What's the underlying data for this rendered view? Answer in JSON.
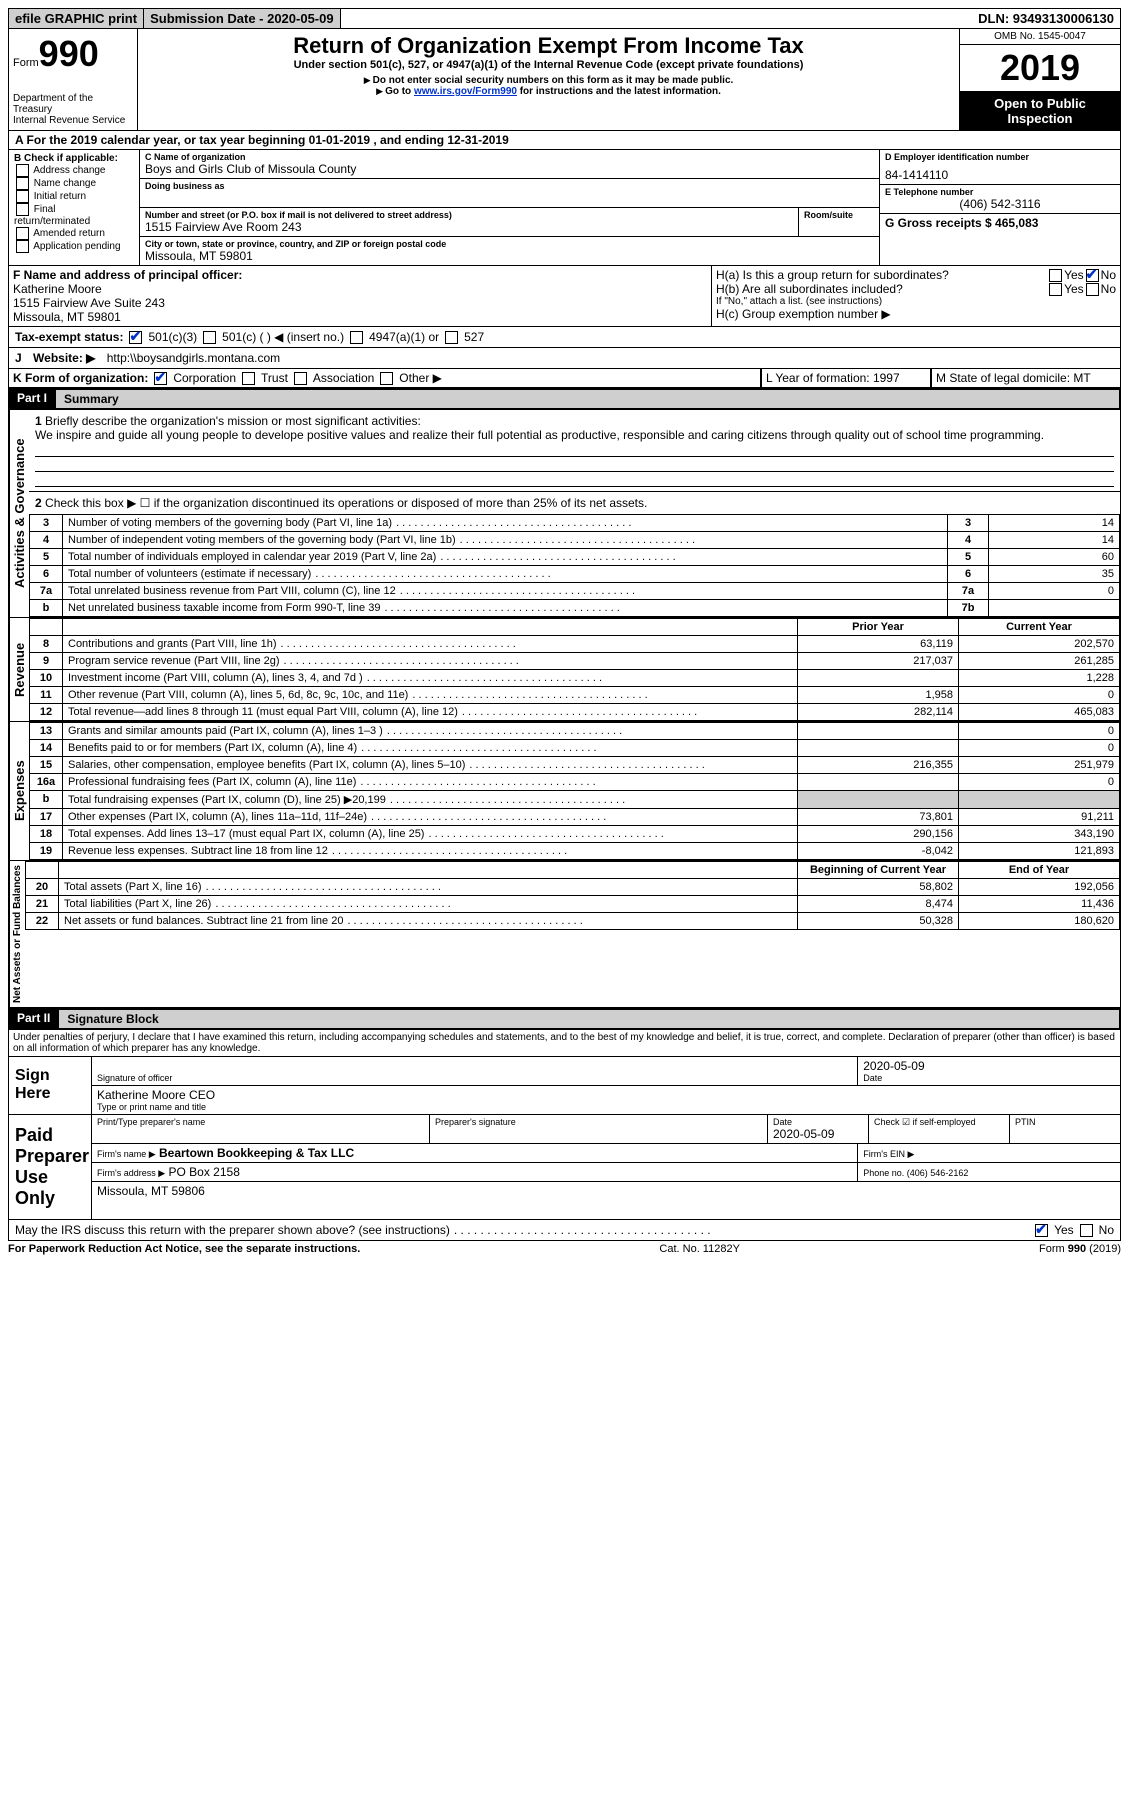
{
  "topbar": {
    "efile": "efile GRAPHIC print",
    "submission_label": "Submission Date - 2020-05-09",
    "dln": "DLN: 93493130006130"
  },
  "header": {
    "form_word": "Form",
    "form_num": "990",
    "dept": "Department of the Treasury\nInternal Revenue Service",
    "title": "Return of Organization Exempt From Income Tax",
    "subtitle": "Under section 501(c), 527, or 4947(a)(1) of the Internal Revenue Code (except private foundations)",
    "note1": "Do not enter social security numbers on this form as it may be made public.",
    "note2_pre": "Go to ",
    "note2_link": "www.irs.gov/Form990",
    "note2_post": " for instructions and the latest information.",
    "omb": "OMB No. 1545-0047",
    "year": "2019",
    "inspect": "Open to Public Inspection"
  },
  "lineA": "A For the 2019 calendar year, or tax year beginning 01-01-2019     , and ending 12-31-2019",
  "boxB": {
    "label": "B Check if applicable:",
    "items": [
      "Address change",
      "Name change",
      "Initial return",
      "Final return/terminated",
      "Amended return",
      "Application pending"
    ]
  },
  "boxC": {
    "name_label": "C Name of organization",
    "name": "Boys and Girls Club of Missoula County",
    "dba_label": "Doing business as",
    "addr_label": "Number and street (or P.O. box if mail is not delivered to street address)",
    "room_label": "Room/suite",
    "addr": "1515 Fairview Ave Room 243",
    "city_label": "City or town, state or province, country, and ZIP or foreign postal code",
    "city": "Missoula, MT  59801"
  },
  "boxD": {
    "label": "D Employer identification number",
    "val": "84-1414110"
  },
  "boxE": {
    "label": "E Telephone number",
    "val": "(406) 542-3116"
  },
  "boxG": {
    "label": "G Gross receipts $ 465,083"
  },
  "boxF": {
    "label": "F  Name and address of principal officer:",
    "name": "Katherine Moore",
    "addr1": "1515 Fairview Ave Suite 243",
    "addr2": "Missoula, MT  59801"
  },
  "boxH": {
    "a": "H(a)  Is this a group return for subordinates?",
    "b": "H(b)  Are all subordinates included?",
    "b_note": "If \"No,\" attach a list. (see instructions)",
    "c": "H(c)  Group exemption number ▶",
    "yes": "Yes",
    "no": "No"
  },
  "lineI": {
    "label": "Tax-exempt status:",
    "opts": [
      "501(c)(3)",
      "501(c) (  ) ◀ (insert no.)",
      "4947(a)(1) or",
      "527"
    ]
  },
  "lineJ": {
    "label": "Website: ▶",
    "val": "http:\\\\boysandgirls.montana.com"
  },
  "lineK": {
    "label": "K Form of organization:",
    "opts": [
      "Corporation",
      "Trust",
      "Association",
      "Other ▶"
    ]
  },
  "lineL": {
    "label": "L Year of formation: 1997"
  },
  "lineM": {
    "label": "M State of legal domicile: MT"
  },
  "part1": {
    "part": "Part I",
    "title": "Summary",
    "q1": "Briefly describe the organization's mission or most significant activities:",
    "q1_text": "We inspire and guide all young people to develope positive values and realize their full potential as productive, responsible and caring citizens through quality out of school time programming.",
    "q2": "Check this box ▶ ☐ if the organization discontinued its operations or disposed of more than 25% of its net assets.",
    "rows_top": [
      {
        "n": "3",
        "t": "Number of voting members of the governing body (Part VI, line 1a)",
        "box": "3",
        "v": "14"
      },
      {
        "n": "4",
        "t": "Number of independent voting members of the governing body (Part VI, line 1b)",
        "box": "4",
        "v": "14"
      },
      {
        "n": "5",
        "t": "Total number of individuals employed in calendar year 2019 (Part V, line 2a)",
        "box": "5",
        "v": "60"
      },
      {
        "n": "6",
        "t": "Total number of volunteers (estimate if necessary)",
        "box": "6",
        "v": "35"
      },
      {
        "n": "7a",
        "t": "Total unrelated business revenue from Part VIII, column (C), line 12",
        "box": "7a",
        "v": "0"
      },
      {
        "n": "b",
        "t": "Net unrelated business taxable income from Form 990-T, line 39",
        "box": "7b",
        "v": ""
      }
    ],
    "col_prior": "Prior Year",
    "col_current": "Current Year",
    "revenue_label": "Revenue",
    "revenue": [
      {
        "n": "8",
        "t": "Contributions and grants (Part VIII, line 1h)",
        "p": "63,119",
        "c": "202,570"
      },
      {
        "n": "9",
        "t": "Program service revenue (Part VIII, line 2g)",
        "p": "217,037",
        "c": "261,285"
      },
      {
        "n": "10",
        "t": "Investment income (Part VIII, column (A), lines 3, 4, and 7d )",
        "p": "",
        "c": "1,228"
      },
      {
        "n": "11",
        "t": "Other revenue (Part VIII, column (A), lines 5, 6d, 8c, 9c, 10c, and 11e)",
        "p": "1,958",
        "c": "0"
      },
      {
        "n": "12",
        "t": "Total revenue—add lines 8 through 11 (must equal Part VIII, column (A), line 12)",
        "p": "282,114",
        "c": "465,083"
      }
    ],
    "expenses_label": "Expenses",
    "expenses": [
      {
        "n": "13",
        "t": "Grants and similar amounts paid (Part IX, column (A), lines 1–3 )",
        "p": "",
        "c": "0"
      },
      {
        "n": "14",
        "t": "Benefits paid to or for members (Part IX, column (A), line 4)",
        "p": "",
        "c": "0"
      },
      {
        "n": "15",
        "t": "Salaries, other compensation, employee benefits (Part IX, column (A), lines 5–10)",
        "p": "216,355",
        "c": "251,979"
      },
      {
        "n": "16a",
        "t": "Professional fundraising fees (Part IX, column (A), line 11e)",
        "p": "",
        "c": "0"
      },
      {
        "n": "b",
        "t": "Total fundraising expenses (Part IX, column (D), line 25) ▶20,199",
        "p": "__SHADED__",
        "c": "__SHADED__"
      },
      {
        "n": "17",
        "t": "Other expenses (Part IX, column (A), lines 11a–11d, 11f–24e)",
        "p": "73,801",
        "c": "91,211"
      },
      {
        "n": "18",
        "t": "Total expenses. Add lines 13–17 (must equal Part IX, column (A), line 25)",
        "p": "290,156",
        "c": "343,190"
      },
      {
        "n": "19",
        "t": "Revenue less expenses. Subtract line 18 from line 12",
        "p": "-8,042",
        "c": "121,893"
      }
    ],
    "net_label": "Net Assets or Fund Balances",
    "col_begin": "Beginning of Current Year",
    "col_end": "End of Year",
    "net": [
      {
        "n": "20",
        "t": "Total assets (Part X, line 16)",
        "p": "58,802",
        "c": "192,056"
      },
      {
        "n": "21",
        "t": "Total liabilities (Part X, line 26)",
        "p": "8,474",
        "c": "11,436"
      },
      {
        "n": "22",
        "t": "Net assets or fund balances. Subtract line 21 from line 20",
        "p": "50,328",
        "c": "180,620"
      }
    ]
  },
  "part2": {
    "part": "Part II",
    "title": "Signature Block",
    "decl": "Under penalties of perjury, I declare that I have examined this return, including accompanying schedules and statements, and to the best of my knowledge and belief, it is true, correct, and complete. Declaration of preparer (other than officer) is based on all information of which preparer has any knowledge.",
    "sign_here": "Sign Here",
    "sig_officer": "Signature of officer",
    "date_label": "Date",
    "sig_date": "2020-05-09",
    "name_title": "Katherine Moore CEO",
    "name_title_label": "Type or print name and title",
    "paid": "Paid Preparer Use Only",
    "prep_name_label": "Print/Type preparer's name",
    "prep_sig_label": "Preparer's signature",
    "prep_date_label": "Date",
    "prep_date": "2020-05-09",
    "check_self": "Check ☑ if self-employed",
    "ptin": "PTIN",
    "firm_name_label": "Firm's name   ▶",
    "firm_name": "Beartown Bookkeeping & Tax LLC",
    "firm_ein": "Firm's EIN ▶",
    "firm_addr_label": "Firm's address ▶",
    "firm_addr1": "PO Box 2158",
    "firm_addr2": "Missoula, MT  59806",
    "phone_label": "Phone no. (406) 546-2162",
    "discuss": "May the IRS discuss this return with the preparer shown above? (see instructions)",
    "yes": "Yes",
    "no": "No"
  },
  "footer": {
    "left": "For Paperwork Reduction Act Notice, see the separate instructions.",
    "mid": "Cat. No. 11282Y",
    "right": "Form 990 (2019)"
  }
}
